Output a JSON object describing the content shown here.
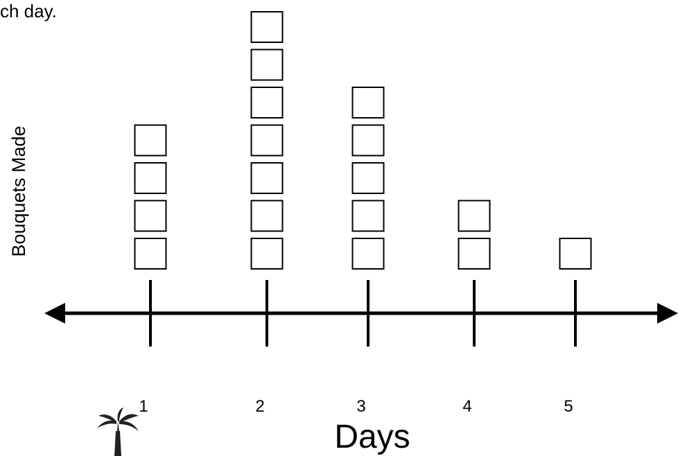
{
  "instruction_fragment": "ch day.",
  "chart_data": {
    "type": "scatter",
    "subtype": "line-plot",
    "title": "",
    "xlabel": "Days",
    "ylabel": "Bouquets Made",
    "categories": [
      "1",
      "2",
      "3",
      "4",
      "5"
    ],
    "values": [
      4,
      7,
      5,
      2,
      1
    ],
    "marker": "square",
    "grid": false,
    "legend": "none",
    "colors": {
      "axis": "#000000",
      "marker_stroke": "#000000",
      "marker_fill": "#ffffff"
    }
  },
  "decoration": {
    "icon": "palm-tree-icon"
  }
}
